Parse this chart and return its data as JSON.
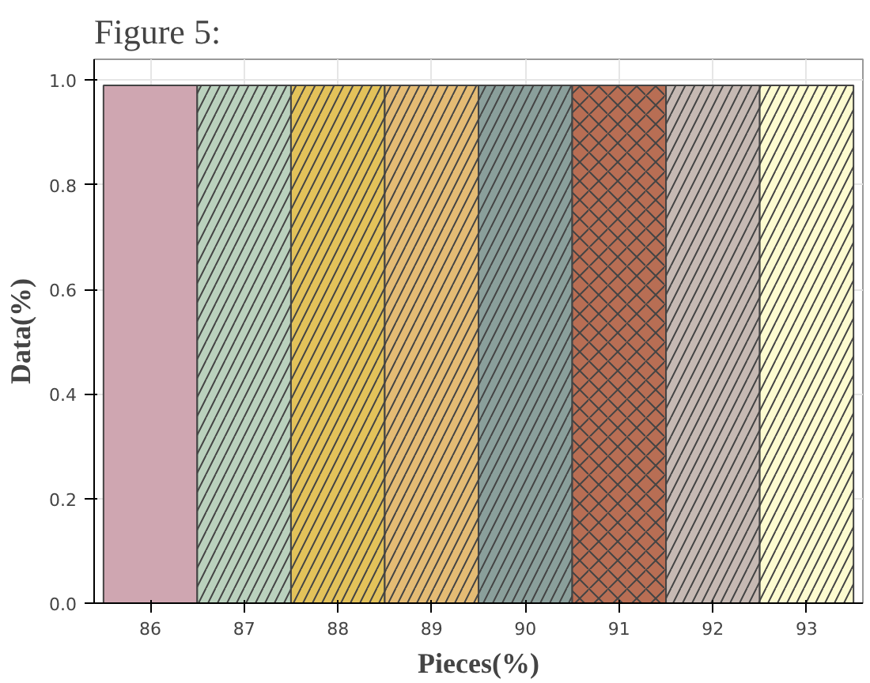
{
  "chart_data": {
    "type": "bar",
    "title": "Figure 5:",
    "xlabel": "Pieces(%)",
    "ylabel": "Data(%)",
    "categories": [
      "86",
      "87",
      "88",
      "89",
      "90",
      "91",
      "92",
      "93"
    ],
    "values": [
      0.99,
      0.99,
      0.99,
      0.99,
      0.99,
      0.99,
      0.99,
      0.99
    ],
    "colors": [
      "#cfa6b1",
      "#bad1bd",
      "#e3c25a",
      "#e4bb74",
      "#8a9f9b",
      "#b86e54",
      "#c6b9b3",
      "#fdfbd0"
    ],
    "ylim": [
      0,
      1.04
    ],
    "yticks": [
      {
        "value": 0,
        "label": "0.0"
      },
      {
        "value": 0.2,
        "label": "0.2"
      },
      {
        "value": 0.4,
        "label": "0.4"
      },
      {
        "value": 0.6,
        "label": "0.6"
      },
      {
        "value": 0.8,
        "label": "0.8"
      },
      {
        "value": 1,
        "label": "1.0"
      }
    ],
    "grid": true
  }
}
